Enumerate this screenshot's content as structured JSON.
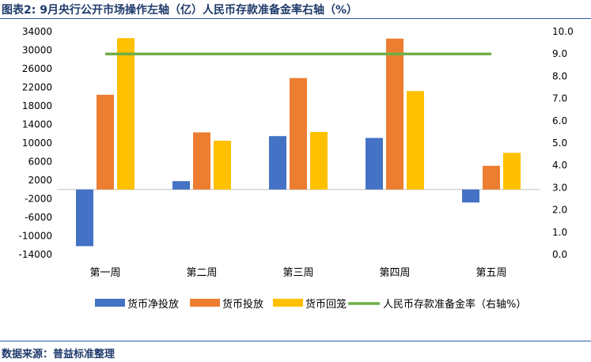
{
  "title": "图表2:  9月央行公开市场操作左轴（亿）人民币存款准备金率右轴（%）",
  "source": "数据来源：普益标准整理",
  "colors": {
    "net_injection": "#4472c4",
    "injection": "#ed7d31",
    "withdrawal": "#ffc000",
    "rrr": "#70ad47",
    "title_text": "#1f3a6b",
    "rule": "#2f5aa8"
  },
  "chart_data": {
    "type": "bar",
    "categories": [
      "第一周",
      "第二周",
      "第三周",
      "第四周",
      "第五周"
    ],
    "series": [
      {
        "name": "货币净投放",
        "values": [
          -12200,
          1800,
          11500,
          11100,
          -2800
        ],
        "axis": "left",
        "color": "#4472c4"
      },
      {
        "name": "货币投放",
        "values": [
          20400,
          12300,
          24000,
          32500,
          5100
        ],
        "axis": "left",
        "color": "#ed7d31"
      },
      {
        "name": "货币回笼",
        "values": [
          32600,
          10500,
          12400,
          21200,
          7900
        ],
        "axis": "left",
        "color": "#ffc000"
      },
      {
        "name": "人民币存款准备金率（右轴%）",
        "type": "line",
        "values": [
          9.0,
          9.0,
          9.0,
          9.0,
          9.0
        ],
        "axis": "right",
        "color": "#70ad47"
      }
    ],
    "ylim_left": [
      -14000,
      34000
    ],
    "yticks_left": [
      "34000",
      "30000",
      "26000",
      "22000",
      "18000",
      "14000",
      "10000",
      "6000",
      "2000",
      "-2000",
      "-6000",
      "-10000",
      "-14000"
    ],
    "ylim_right": [
      0,
      10
    ],
    "yticks_right": [
      "10.0",
      "9.0",
      "8.0",
      "7.0",
      "6.0",
      "5.0",
      "4.0",
      "3.0",
      "2.0",
      "1.0",
      "0.0"
    ],
    "legend_position": "bottom",
    "grid": false
  }
}
